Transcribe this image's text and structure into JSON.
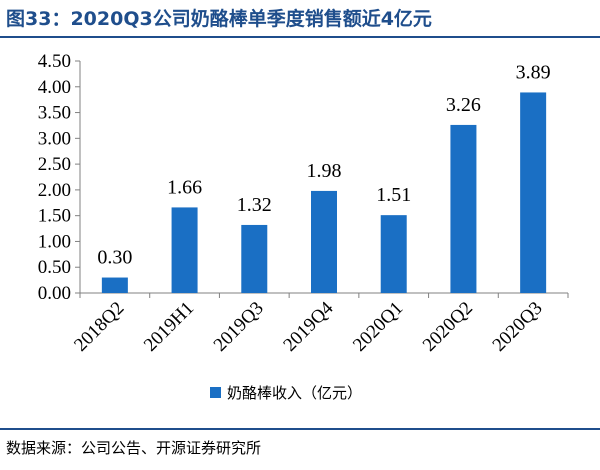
{
  "header": {
    "title": "图33：2020Q3公司奶酪棒单季度销售额近4亿元"
  },
  "footer": {
    "source": "数据来源：公司公告、开源证券研究所"
  },
  "colors": {
    "bar": "#1a6fc4",
    "rule": "#1f4e8c",
    "axis": "#808080"
  },
  "chart_data": {
    "type": "bar",
    "title": "图33：2020Q3公司奶酪棒单季度销售额近4亿元",
    "categories": [
      "2018Q2",
      "2019H1",
      "2019Q3",
      "2019Q4",
      "2020Q1",
      "2020Q2",
      "2020Q3"
    ],
    "series": [
      {
        "name": "奶酪棒收入（亿元）",
        "values": [
          0.3,
          1.66,
          1.32,
          1.98,
          1.51,
          3.26,
          3.89
        ]
      }
    ],
    "data_labels": [
      "0.30",
      "1.66",
      "1.32",
      "1.98",
      "1.51",
      "3.26",
      "3.89"
    ],
    "yticks": [
      "0.00",
      "0.50",
      "1.00",
      "1.50",
      "2.00",
      "2.50",
      "3.00",
      "3.50",
      "4.00",
      "4.50"
    ],
    "ylim": [
      0,
      4.5
    ],
    "xlabel": "",
    "ylabel": "",
    "grid": false,
    "legend": "bottom-center"
  }
}
